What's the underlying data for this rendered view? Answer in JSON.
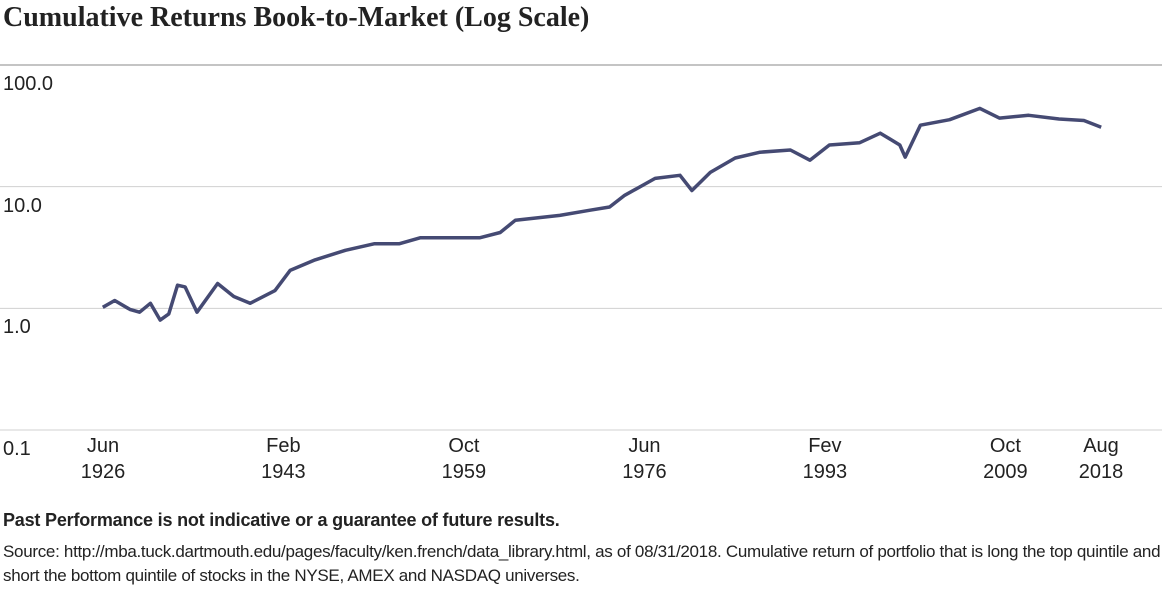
{
  "chart_data": {
    "type": "line",
    "title": "Cumulative Returns Book-to-Market (Log Scale)",
    "note": "Past Performance is not indicative or a guarantee of future results.",
    "source": "Source: http://mba.tuck.dartmouth.edu/pages/faculty/ken.french/data_library.html, as of 08/31/2018. Cumulative return of portfolio that is long the top quintile and short the bottom quintile of stocks in the NYSE, AMEX and NASDAQ universes.",
    "log_scale": true,
    "grid": true,
    "series": [
      {
        "name": "Book-to-Market",
        "color": "#454a73",
        "x": [
          1926.4,
          1927.5,
          1928.9,
          1929.8,
          1930.8,
          1931.7,
          1932.5,
          1933.3,
          1934.0,
          1935.1,
          1937.0,
          1938.5,
          1940.0,
          1942.3,
          1943.7,
          1946.0,
          1948.8,
          1951.5,
          1953.8,
          1955.7,
          1958.5,
          1961.2,
          1963.1,
          1964.5,
          1968.6,
          1971.4,
          1973.2,
          1974.6,
          1977.4,
          1979.7,
          1980.8,
          1982.5,
          1984.8,
          1987.1,
          1989.9,
          1991.7,
          1993.5,
          1996.3,
          1998.2,
          2000.0,
          2000.5,
          2001.9,
          2004.6,
          2007.4,
          2009.2,
          2011.9,
          2014.7,
          2017.0,
          2018.6
        ],
        "values": [
          1.02,
          1.16,
          0.98,
          0.93,
          1.1,
          0.8,
          0.9,
          1.55,
          1.5,
          0.93,
          1.6,
          1.25,
          1.1,
          1.4,
          2.05,
          2.5,
          3.0,
          3.4,
          3.4,
          3.8,
          3.8,
          3.8,
          4.2,
          5.3,
          5.8,
          6.4,
          6.8,
          8.5,
          11.7,
          12.4,
          9.3,
          13.1,
          17.2,
          19.2,
          20,
          16.5,
          22,
          23,
          27.5,
          22,
          17.5,
          32,
          35.5,
          44,
          36.6,
          38.6,
          36,
          35,
          30.8
        ]
      }
    ],
    "xlim": [
      1926.42,
      2018.58
    ],
    "xticks": [
      {
        "value": 1926.42,
        "label": "Jun\n1926"
      },
      {
        "value": 1943.08,
        "label": "Feb\n1943"
      },
      {
        "value": 1959.75,
        "label": "Oct\n1959"
      },
      {
        "value": 1976.42,
        "label": "Jun\n1976"
      },
      {
        "value": 1993.08,
        "label": "Fev\n1993"
      },
      {
        "value": 2009.75,
        "label": "Oct\n2009"
      },
      {
        "value": 2018.58,
        "label": "Aug\n2018"
      }
    ],
    "ylim": [
      0.1,
      100
    ],
    "yticks": [
      0.1,
      {
        "value": 1,
        "label": "1.0"
      },
      {
        "value": 10,
        "label": "10.0"
      },
      {
        "value": 100,
        "label": "100.0"
      }
    ]
  }
}
